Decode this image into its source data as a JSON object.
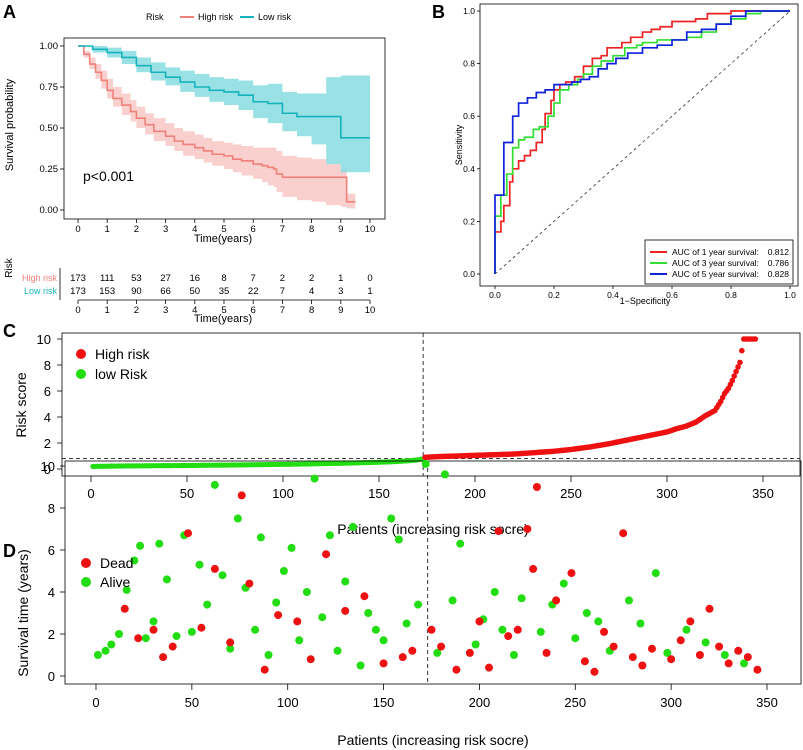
{
  "panels": {
    "A": "A",
    "B": "B",
    "C": "C",
    "D": "D"
  },
  "colors": {
    "high_km": "#f0807a",
    "high_band": "#f8c4c0",
    "low_km": "#17b3bd",
    "low_band": "#7fd9df",
    "red_point": "#ee1111",
    "green_point": "#22dd11",
    "roc1": "#ee2222",
    "roc3": "#33dd33",
    "roc5": "#1122dd"
  },
  "chart_data": [
    {
      "id": "A",
      "type": "line",
      "title": "",
      "legend_title": "Risk",
      "xlabel": "Time(years)",
      "ylabel": "Survival probability",
      "xlim": [
        0,
        10
      ],
      "ylim": [
        0,
        1
      ],
      "xticks": [
        "0",
        "1",
        "2",
        "3",
        "4",
        "5",
        "6",
        "7",
        "8",
        "9",
        "10"
      ],
      "yticks": [
        "0.00",
        "0.25",
        "0.50",
        "0.75",
        "1.00"
      ],
      "annotation": "p<0.001",
      "series": [
        {
          "name": "High risk",
          "x": [
            0,
            0.2,
            0.4,
            0.6,
            0.8,
            1,
            1.2,
            1.5,
            1.8,
            2,
            2.3,
            2.6,
            3,
            3.3,
            3.6,
            4,
            4.3,
            4.6,
            5,
            5.3,
            5.6,
            6,
            6.3,
            6.5,
            6.7,
            6.8,
            7,
            7.5,
            8,
            8.5,
            9,
            9.2,
            9.5
          ],
          "y": [
            1,
            0.95,
            0.89,
            0.84,
            0.79,
            0.73,
            0.68,
            0.64,
            0.6,
            0.56,
            0.52,
            0.48,
            0.45,
            0.42,
            0.4,
            0.38,
            0.36,
            0.34,
            0.33,
            0.31,
            0.3,
            0.28,
            0.27,
            0.26,
            0.25,
            0.22,
            0.2,
            0.2,
            0.2,
            0.2,
            0.2,
            0.05,
            0.05
          ],
          "lower": [
            1,
            0.93,
            0.86,
            0.8,
            0.74,
            0.68,
            0.63,
            0.58,
            0.54,
            0.5,
            0.46,
            0.42,
            0.39,
            0.36,
            0.33,
            0.31,
            0.29,
            0.27,
            0.25,
            0.23,
            0.21,
            0.19,
            0.17,
            0.15,
            0.14,
            0.11,
            0.08,
            0.06,
            0.05,
            0.03,
            0.02,
            0.01,
            0.01
          ],
          "upper": [
            1,
            0.97,
            0.93,
            0.89,
            0.85,
            0.8,
            0.75,
            0.71,
            0.67,
            0.63,
            0.59,
            0.56,
            0.53,
            0.5,
            0.48,
            0.46,
            0.44,
            0.42,
            0.41,
            0.4,
            0.39,
            0.38,
            0.38,
            0.38,
            0.38,
            0.36,
            0.33,
            0.32,
            0.31,
            0.28,
            0.25,
            0.1,
            0.1
          ]
        },
        {
          "name": "Low risk",
          "x": [
            0,
            0.5,
            1,
            1.5,
            2,
            2.5,
            3,
            3.5,
            4,
            4.5,
            5,
            5.5,
            6,
            6.5,
            7,
            7.5,
            8,
            8.5,
            9,
            9.5,
            10
          ],
          "y": [
            1,
            0.98,
            0.96,
            0.93,
            0.88,
            0.84,
            0.81,
            0.78,
            0.75,
            0.73,
            0.72,
            0.7,
            0.66,
            0.65,
            0.59,
            0.57,
            0.57,
            0.57,
            0.44,
            0.44,
            0.44
          ],
          "lower": [
            1,
            0.96,
            0.93,
            0.89,
            0.84,
            0.79,
            0.76,
            0.72,
            0.69,
            0.66,
            0.64,
            0.61,
            0.56,
            0.53,
            0.48,
            0.45,
            0.4,
            0.28,
            0.23,
            0.23,
            0.23
          ],
          "upper": [
            1,
            1,
            0.99,
            0.97,
            0.93,
            0.9,
            0.87,
            0.85,
            0.83,
            0.81,
            0.8,
            0.79,
            0.76,
            0.77,
            0.72,
            0.71,
            0.71,
            0.81,
            0.82,
            0.82,
            0.82
          ]
        }
      ],
      "risk_table": {
        "title": "Risk",
        "xlabel": "Time(years)",
        "rows": [
          {
            "name": "High risk",
            "counts": [
              "173",
              "111",
              "53",
              "27",
              "16",
              "8",
              "7",
              "2",
              "2",
              "1",
              "0"
            ]
          },
          {
            "name": "Low risk",
            "counts": [
              "173",
              "153",
              "90",
              "66",
              "50",
              "35",
              "22",
              "7",
              "4",
              "3",
              "1"
            ]
          }
        ]
      }
    },
    {
      "id": "B",
      "type": "line",
      "title": "",
      "xlabel": "1−Specificity",
      "ylabel": "Sensitivity",
      "xlim": [
        0,
        1
      ],
      "ylim": [
        0,
        1
      ],
      "xticks": [
        "0.0",
        "0.2",
        "0.4",
        "0.6",
        "0.8",
        "1.0"
      ],
      "yticks": [
        "0.0",
        "0.2",
        "0.4",
        "0.6",
        "0.8",
        "1.0"
      ],
      "series": [
        {
          "name": "AUC of 1 year survival:",
          "auc": "0.812",
          "x": [
            0,
            0,
            0.02,
            0.03,
            0.05,
            0.06,
            0.08,
            0.1,
            0.12,
            0.14,
            0.16,
            0.17,
            0.19,
            0.2,
            0.22,
            0.24,
            0.27,
            0.3,
            0.33,
            0.36,
            0.38,
            0.41,
            0.43,
            0.46,
            0.49,
            0.5,
            0.53,
            0.56,
            0.6,
            0.64,
            0.68,
            0.72,
            0.76,
            0.8,
            0.84,
            0.9,
            1
          ],
          "y": [
            0,
            0.16,
            0.2,
            0.26,
            0.35,
            0.4,
            0.43,
            0.45,
            0.47,
            0.5,
            0.55,
            0.61,
            0.66,
            0.7,
            0.72,
            0.73,
            0.75,
            0.79,
            0.82,
            0.83,
            0.86,
            0.86,
            0.88,
            0.9,
            0.9,
            0.92,
            0.93,
            0.94,
            0.96,
            0.96,
            0.97,
            0.99,
            0.99,
            1,
            1,
            1,
            1
          ]
        },
        {
          "name": "AUC of 3 year survival:",
          "auc": "0.786",
          "x": [
            0,
            0,
            0.02,
            0.04,
            0.06,
            0.08,
            0.1,
            0.13,
            0.15,
            0.18,
            0.2,
            0.22,
            0.25,
            0.28,
            0.3,
            0.33,
            0.36,
            0.4,
            0.44,
            0.48,
            0.5,
            0.55,
            0.6,
            0.65,
            0.7,
            0.75,
            0.8,
            0.85,
            0.9,
            1
          ],
          "y": [
            0,
            0.22,
            0.3,
            0.38,
            0.48,
            0.51,
            0.52,
            0.55,
            0.56,
            0.6,
            0.65,
            0.7,
            0.72,
            0.74,
            0.76,
            0.79,
            0.81,
            0.83,
            0.86,
            0.87,
            0.88,
            0.89,
            0.89,
            0.9,
            0.92,
            0.95,
            0.97,
            0.99,
            1,
            1
          ]
        },
        {
          "name": "AUC of 5 year survival:",
          "auc": "0.828",
          "x": [
            0,
            0,
            0.03,
            0.06,
            0.08,
            0.11,
            0.14,
            0.17,
            0.2,
            0.23,
            0.26,
            0.29,
            0.32,
            0.35,
            0.38,
            0.41,
            0.45,
            0.5,
            0.55,
            0.6,
            0.65,
            0.7,
            0.75,
            0.8,
            0.85,
            0.9,
            1
          ],
          "y": [
            0,
            0.3,
            0.5,
            0.6,
            0.65,
            0.67,
            0.69,
            0.7,
            0.72,
            0.72,
            0.73,
            0.74,
            0.75,
            0.78,
            0.8,
            0.82,
            0.84,
            0.86,
            0.87,
            0.89,
            0.92,
            0.93,
            0.95,
            0.98,
            1,
            1,
            1
          ]
        }
      ]
    },
    {
      "id": "C",
      "type": "scatter",
      "title": "",
      "xlabel": "Patients (increasing risk socre)",
      "ylabel": "Risk score",
      "xlim": [
        0,
        350
      ],
      "ylim": [
        0,
        10
      ],
      "xticks": [
        "0",
        "50",
        "100",
        "150",
        "200",
        "250",
        "300",
        "350"
      ],
      "yticks": [
        "0",
        "2",
        "4",
        "6",
        "8",
        "10"
      ],
      "cutoff_patient": 173,
      "cutoff_score": 0.8,
      "series": [
        {
          "name": "High risk",
          "x": [
            174,
            180,
            190,
            200,
            210,
            220,
            230,
            240,
            250,
            260,
            270,
            280,
            290,
            295,
            300,
            305,
            310,
            315,
            320,
            325,
            328,
            330,
            332,
            334,
            336,
            338,
            340,
            342,
            344,
            346
          ],
          "y": [
            0.9,
            0.95,
            1.0,
            1.05,
            1.1,
            1.15,
            1.25,
            1.35,
            1.5,
            1.7,
            1.95,
            2.25,
            2.55,
            2.7,
            2.85,
            3.1,
            3.3,
            3.6,
            4.1,
            4.5,
            5.2,
            5.8,
            6.2,
            6.8,
            7.5,
            8.2,
            10,
            10,
            10,
            10
          ]
        },
        {
          "name": "low Risk",
          "x": [
            1,
            10,
            20,
            30,
            40,
            50,
            60,
            70,
            80,
            90,
            100,
            110,
            120,
            130,
            140,
            150,
            160,
            165,
            170,
            173
          ],
          "y": [
            0.2,
            0.22,
            0.24,
            0.25,
            0.26,
            0.27,
            0.29,
            0.3,
            0.32,
            0.34,
            0.36,
            0.38,
            0.41,
            0.44,
            0.48,
            0.52,
            0.58,
            0.63,
            0.7,
            0.78
          ]
        }
      ]
    },
    {
      "id": "D",
      "type": "scatter",
      "title": "",
      "xlabel": "Patients (increasing risk socre)",
      "ylabel": "Survival time (years)",
      "xlim": [
        0,
        350
      ],
      "ylim": [
        0,
        10
      ],
      "xticks": [
        "0",
        "50",
        "100",
        "150",
        "200",
        "250",
        "300",
        "350"
      ],
      "yticks": [
        "0",
        "2",
        "4",
        "6",
        "8",
        "10"
      ],
      "cutoff_patient": 173,
      "series": [
        {
          "name": "Dead",
          "x": [
            15,
            22,
            30,
            35,
            40,
            48,
            55,
            62,
            70,
            76,
            80,
            88,
            95,
            105,
            112,
            120,
            130,
            140,
            150,
            160,
            165,
            175,
            180,
            188,
            195,
            200,
            205,
            210,
            215,
            220,
            225,
            228,
            230,
            235,
            240,
            248,
            255,
            260,
            265,
            270,
            275,
            280,
            285,
            290,
            300,
            305,
            310,
            315,
            320,
            325,
            330,
            335,
            340,
            345
          ],
          "y": [
            3.2,
            1.8,
            2.2,
            0.9,
            1.4,
            6.8,
            2.3,
            5.1,
            1.6,
            8.6,
            4.4,
            0.3,
            2.9,
            2.6,
            0.8,
            5.8,
            3.1,
            3.8,
            0.6,
            0.9,
            1.2,
            2.2,
            1.4,
            0.3,
            1.1,
            2.6,
            0.4,
            6.9,
            1.9,
            2.2,
            7.0,
            5.1,
            9.0,
            1.1,
            3.6,
            4.9,
            0.7,
            0.2,
            2.1,
            1.4,
            6.8,
            0.9,
            0.5,
            1.3,
            0.8,
            1.7,
            2.6,
            1.0,
            3.2,
            1.4,
            0.6,
            1.2,
            0.9,
            0.3
          ]
        },
        {
          "name": "Alive",
          "x": [
            1,
            5,
            8,
            12,
            16,
            20,
            23,
            26,
            30,
            33,
            37,
            42,
            46,
            50,
            54,
            58,
            62,
            66,
            70,
            74,
            78,
            83,
            86,
            90,
            94,
            98,
            102,
            106,
            110,
            114,
            118,
            122,
            126,
            130,
            134,
            138,
            142,
            146,
            150,
            154,
            158,
            162,
            168,
            172,
            178,
            182,
            186,
            190,
            198,
            202,
            208,
            212,
            218,
            222,
            232,
            238,
            244,
            250,
            256,
            262,
            268,
            278,
            284,
            292,
            298,
            308,
            318,
            328,
            338
          ],
          "y": [
            1.0,
            1.2,
            1.5,
            2.0,
            4.1,
            5.5,
            6.2,
            1.8,
            2.6,
            6.3,
            4.6,
            1.9,
            6.7,
            2.1,
            5.3,
            3.4,
            9.1,
            4.8,
            1.3,
            7.5,
            4.2,
            2.2,
            6.6,
            1.0,
            3.5,
            5.0,
            6.1,
            1.7,
            4.0,
            9.4,
            2.8,
            6.7,
            1.2,
            4.5,
            7.1,
            0.5,
            3.0,
            2.2,
            1.7,
            7.5,
            6.5,
            2.5,
            3.4,
            10.1,
            1.1,
            9.6,
            3.6,
            6.3,
            1.5,
            2.7,
            4.0,
            2.2,
            1.0,
            3.7,
            2.1,
            3.4,
            4.4,
            1.8,
            3.0,
            2.6,
            1.2,
            3.6,
            2.5,
            4.9,
            1.1,
            2.2,
            1.6,
            1.0,
            0.6
          ]
        }
      ]
    }
  ]
}
